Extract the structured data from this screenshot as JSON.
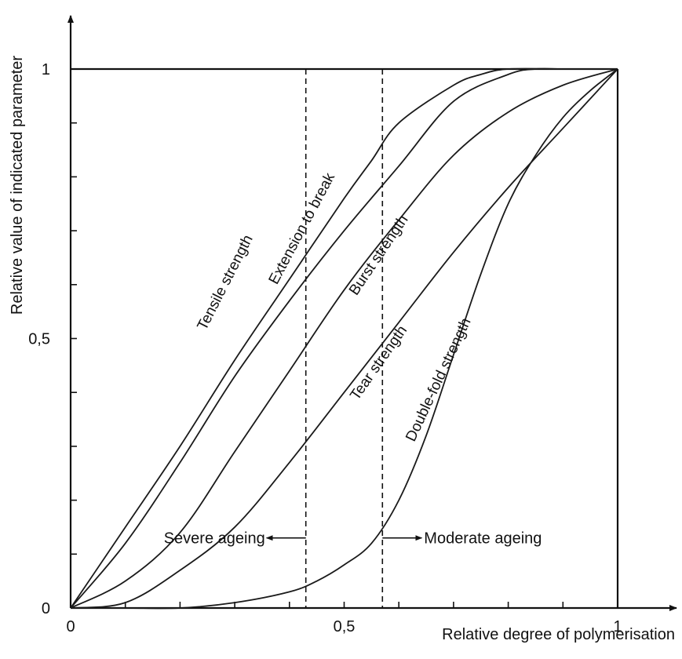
{
  "chart_data": {
    "type": "line",
    "title": "",
    "xlabel": "Relative degree of polymerisation",
    "ylabel": "Relative value of indicated parameter",
    "xlim": [
      0,
      1
    ],
    "ylim": [
      0,
      1
    ],
    "grid": false,
    "x_tick_labels": [
      {
        "value": 0,
        "label": "0"
      },
      {
        "value": 0.5,
        "label": "0,5"
      },
      {
        "value": 1,
        "label": "1"
      }
    ],
    "y_tick_labels": [
      {
        "value": 0,
        "label": "0"
      },
      {
        "value": 0.5,
        "label": "0,5"
      },
      {
        "value": 1,
        "label": "1"
      }
    ],
    "series": [
      {
        "name": "Tensile strength",
        "x": [
          0,
          0.1,
          0.2,
          0.3,
          0.4,
          0.5,
          0.55,
          0.6,
          0.7,
          0.75,
          0.8,
          0.9,
          1.0
        ],
        "y": [
          0,
          0.15,
          0.3,
          0.46,
          0.61,
          0.76,
          0.83,
          0.9,
          0.97,
          0.99,
          1.0,
          1.0,
          1.0
        ]
      },
      {
        "name": "Extension to break",
        "x": [
          0,
          0.1,
          0.2,
          0.3,
          0.4,
          0.5,
          0.6,
          0.7,
          0.8,
          0.85,
          0.9,
          1.0
        ],
        "y": [
          0,
          0.12,
          0.27,
          0.43,
          0.57,
          0.7,
          0.82,
          0.94,
          0.99,
          1.0,
          1.0,
          1.0
        ]
      },
      {
        "name": "Burst strength",
        "x": [
          0,
          0.1,
          0.2,
          0.3,
          0.4,
          0.5,
          0.6,
          0.7,
          0.8,
          0.9,
          1.0
        ],
        "y": [
          0,
          0.05,
          0.14,
          0.29,
          0.44,
          0.59,
          0.72,
          0.84,
          0.92,
          0.97,
          1.0
        ]
      },
      {
        "name": "Tear strength",
        "x": [
          0,
          0.1,
          0.2,
          0.3,
          0.4,
          0.5,
          0.6,
          0.7,
          0.8,
          0.9,
          1.0
        ],
        "y": [
          0,
          0.01,
          0.07,
          0.15,
          0.27,
          0.4,
          0.53,
          0.66,
          0.78,
          0.89,
          1.0
        ]
      },
      {
        "name": "Double-fold strength",
        "x": [
          0,
          0.1,
          0.2,
          0.3,
          0.4,
          0.45,
          0.5,
          0.55,
          0.6,
          0.65,
          0.7,
          0.75,
          0.8,
          0.85,
          0.9,
          0.95,
          1.0
        ],
        "y": [
          0,
          0,
          0.0,
          0.01,
          0.03,
          0.05,
          0.08,
          0.12,
          0.2,
          0.32,
          0.47,
          0.62,
          0.75,
          0.84,
          0.91,
          0.96,
          1.0
        ]
      }
    ],
    "curve_labels": [
      {
        "series": "Tensile strength",
        "text": "Tensile strength",
        "x": 0.29,
        "y": 0.6,
        "angle": -63
      },
      {
        "series": "Extension to break",
        "text": "Extension to break",
        "x": 0.43,
        "y": 0.7,
        "angle": -62
      },
      {
        "series": "Burst strength",
        "text": "Burst strength",
        "x": 0.57,
        "y": 0.65,
        "angle": -56
      },
      {
        "series": "Tear strength",
        "text": "Tear strength",
        "x": 0.57,
        "y": 0.45,
        "angle": -55
      },
      {
        "series": "Double-fold strength",
        "text": "Double-fold strength",
        "x": 0.68,
        "y": 0.42,
        "angle": -65
      }
    ],
    "annotations": {
      "boundaries": [
        0.43,
        0.57
      ],
      "severe_label": "Severe ageing",
      "moderate_label": "Moderate ageing",
      "arrow_y": 0.13
    }
  }
}
